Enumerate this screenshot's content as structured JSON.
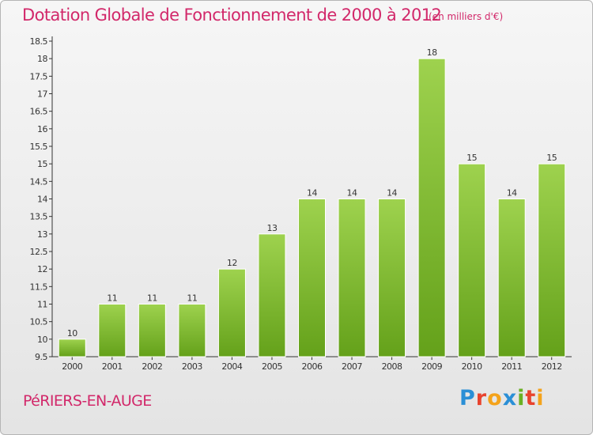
{
  "title": "Dotation Globale de Fonctionnement de 2000 à 2012",
  "unit_note": "(en milliers d'€)",
  "commune": "PéRIERS-EN-AUGE",
  "logo": {
    "text": "Proxiti",
    "letters": [
      {
        "ch": "P",
        "color": "#2a8fd6"
      },
      {
        "ch": "r",
        "color": "#e8432e"
      },
      {
        "ch": "o",
        "color": "#f4a31b"
      },
      {
        "ch": "x",
        "color": "#2a8fd6"
      },
      {
        "ch": "i",
        "color": "#6ab023"
      },
      {
        "ch": "t",
        "color": "#e8432e"
      },
      {
        "ch": "i",
        "color": "#f4a31b"
      }
    ]
  },
  "colors": {
    "accent": "#d2286a",
    "bar_light": "#9ed24e",
    "bar_dark": "#64a11a",
    "axis": "#333333"
  },
  "chart_data": {
    "type": "bar",
    "categories": [
      "2000",
      "2001",
      "2002",
      "2003",
      "2004",
      "2005",
      "2006",
      "2007",
      "2008",
      "2009",
      "2010",
      "2011",
      "2012"
    ],
    "values": [
      10,
      11,
      11,
      11,
      12,
      13,
      14,
      14,
      14,
      18,
      15,
      14,
      15
    ],
    "data_labels": [
      "10",
      "11",
      "11",
      "11",
      "12",
      "13",
      "14",
      "14",
      "14",
      "18",
      "15",
      "14",
      "15"
    ],
    "ylim": [
      9.5,
      18.5
    ],
    "yticks": [
      "9.5",
      "10",
      "10.5",
      "11",
      "11.5",
      "12",
      "12.5",
      "13",
      "13.5",
      "14",
      "14.5",
      "15",
      "15.5",
      "16",
      "16.5",
      "17",
      "17.5",
      "18",
      "18.5"
    ],
    "xlabel": "",
    "ylabel": "",
    "grid": false,
    "legend": "none"
  }
}
